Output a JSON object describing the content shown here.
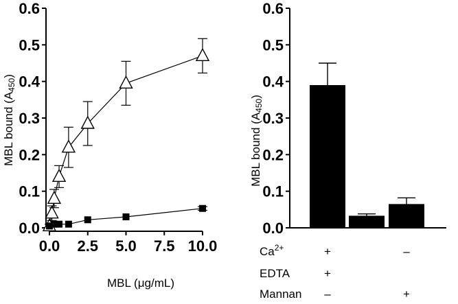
{
  "chart_data": [
    {
      "type": "line",
      "xlabel_prefix": "MBL (",
      "xlabel_unit": "μg/mL",
      "xlabel_suffix": ")",
      "ylabel_prefix": "MBL bound (A",
      "ylabel_sub": "450",
      "ylabel_suffix": ")",
      "xlim": [
        0,
        10
      ],
      "ylim": [
        0,
        0.6
      ],
      "xticks": [
        "0.0",
        "2.5",
        "5.0",
        "7.5",
        "10.0"
      ],
      "xtick_values": [
        0,
        2.5,
        5,
        7.5,
        10
      ],
      "yticks": [
        "0.0",
        "0.1",
        "0.2",
        "0.3",
        "0.4",
        "0.5",
        "0.6"
      ],
      "ytick_values": [
        0,
        0.1,
        0.2,
        0.3,
        0.4,
        0.5,
        0.6
      ],
      "series": [
        {
          "marker": "open-triangle",
          "x": [
            0,
            0.16,
            0.31,
            0.63,
            1.25,
            2.5,
            5,
            10
          ],
          "y": [
            0.005,
            0.04,
            0.08,
            0.14,
            0.22,
            0.285,
            0.395,
            0.47
          ],
          "err": [
            0.005,
            0.02,
            0.025,
            0.03,
            0.055,
            0.06,
            0.06,
            0.047
          ]
        },
        {
          "marker": "filled-square",
          "x": [
            0,
            0.31,
            0.63,
            1.25,
            2.5,
            5,
            10
          ],
          "y": [
            0.005,
            0.01,
            0.01,
            0.01,
            0.022,
            0.03,
            0.053
          ],
          "err": [
            0,
            0,
            0,
            0,
            0,
            0,
            0.005
          ]
        }
      ]
    },
    {
      "type": "bar",
      "ylabel_prefix": "MBL bound (A",
      "ylabel_sub": "450",
      "ylabel_suffix": ")",
      "ylim": [
        0,
        0.6
      ],
      "yticks": [
        "0.0",
        "0.1",
        "0.2",
        "0.3",
        "0.4",
        "0.5",
        "0.6"
      ],
      "ytick_values": [
        0,
        0.1,
        0.2,
        0.3,
        0.4,
        0.5,
        0.6
      ],
      "values": [
        0.39,
        0.033,
        0.065
      ],
      "errors": [
        0.06,
        0.005,
        0.017
      ],
      "bar_color": "#000000",
      "conditions": [
        {
          "label": "Ca",
          "sup": "2+",
          "marks": [
            "+",
            "",
            "–"
          ]
        },
        {
          "label": "EDTA",
          "sup": "",
          "marks": [
            "+",
            "",
            ""
          ]
        },
        {
          "label": "Mannan",
          "sup": "",
          "marks": [
            "–",
            "",
            "+"
          ]
        }
      ]
    }
  ]
}
